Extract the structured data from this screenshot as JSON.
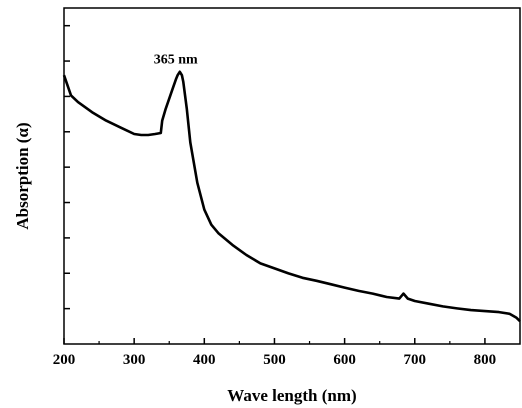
{
  "chart_data": {
    "type": "line",
    "title": "",
    "xlabel": "Wave length (nm)",
    "ylabel": "Absorption (α)",
    "xlim": [
      200,
      850
    ],
    "x_ticks": [
      200,
      300,
      400,
      500,
      600,
      700,
      800
    ],
    "y_ticks_labeled": false,
    "grid": false,
    "annotations": [
      {
        "text": "365 nm",
        "x": 365,
        "y": 0.82
      }
    ],
    "series": [
      {
        "color": "#000000",
        "x": [
          200,
          210,
          220,
          240,
          260,
          280,
          300,
          310,
          320,
          330,
          338,
          340,
          345,
          350,
          355,
          360,
          362,
          365,
          368,
          370,
          375,
          380,
          390,
          400,
          410,
          420,
          440,
          460,
          480,
          500,
          520,
          540,
          560,
          580,
          600,
          620,
          640,
          660,
          678,
          684,
          690,
          700,
          720,
          740,
          760,
          780,
          800,
          820,
          835,
          845,
          850
        ],
        "y": [
          0.8,
          0.74,
          0.72,
          0.69,
          0.665,
          0.645,
          0.625,
          0.622,
          0.622,
          0.625,
          0.628,
          0.665,
          0.7,
          0.73,
          0.76,
          0.79,
          0.8,
          0.81,
          0.8,
          0.78,
          0.7,
          0.6,
          0.48,
          0.4,
          0.355,
          0.33,
          0.295,
          0.265,
          0.24,
          0.225,
          0.21,
          0.197,
          0.188,
          0.178,
          0.168,
          0.158,
          0.15,
          0.14,
          0.135,
          0.15,
          0.135,
          0.128,
          0.12,
          0.112,
          0.106,
          0.101,
          0.098,
          0.095,
          0.09,
          0.078,
          0.068
        ]
      }
    ]
  }
}
